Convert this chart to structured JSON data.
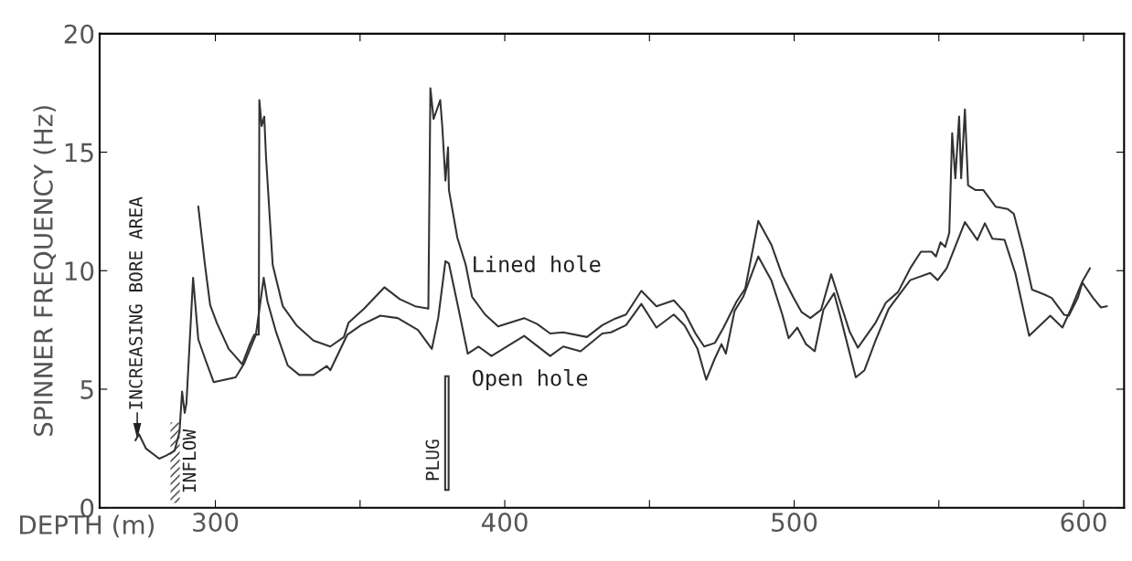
{
  "chart_data": {
    "type": "line",
    "xlabel": "DEPTH (m)",
    "ylabel": "SPINNER FREQUENCY (Hz)",
    "xlim": [
      260,
      614
    ],
    "ylim": [
      0,
      20
    ],
    "xticks": [
      300,
      {
        "value": 350,
        "label": null
      },
      400,
      {
        "value": 450,
        "label": null
      },
      500,
      {
        "value": 550,
        "label": null
      },
      600
    ],
    "yticks": [
      0,
      5,
      10,
      15,
      20
    ],
    "grid": false,
    "legend": false,
    "marker": "none",
    "line_style": "solid",
    "series": [
      {
        "name": "Lined hole",
        "color": "#333333",
        "x": [
          294.1,
          296.4,
          298.2,
          300.5,
          304.6,
          309.3,
          311.6,
          313.4,
          315,
          315.2,
          316,
          316.9,
          317.5,
          319.8,
          323.3,
          328,
          333.9,
          339.7,
          344.4,
          346,
          351.4,
          358.4,
          363.7,
          369,
          373.6,
          374.3,
          375.4,
          377.7,
          378.4,
          379.5,
          380.4,
          380.7,
          383.6,
          386.5,
          388.7,
          393.2,
          397.7,
          406.7,
          411.2,
          415.7,
          420.2,
          428.4,
          433.7,
          438.2,
          441.9,
          447.2,
          452.4,
          458.4,
          462.1,
          465.9,
          468.9,
          472.6,
          475.6,
          480.1,
          483.1,
          487.6,
          492.1,
          495.9,
          499.6,
          502.6,
          505.6,
          509.3,
          512.8,
          515.3,
          519.1,
          522,
          528.1,
          531.7,
          535.9,
          540.1,
          543.8,
          547.5,
          549,
          550.6,
          552.2,
          553.6,
          554.6,
          555.7,
          557,
          557.7,
          559,
          560.1,
          562.7,
          565.4,
          569.6,
          573.8,
          575.9,
          579.1,
          582.2,
          586.4,
          589,
          593.3,
          594.9,
          598,
          599.6,
          603.3,
          606,
          608
        ],
        "values": [
          12.7,
          10.25,
          8.55,
          7.8,
          6.7,
          6.05,
          6.8,
          7.3,
          7.3,
          17.2,
          16.1,
          16.5,
          14.8,
          10.25,
          8.5,
          7.7,
          7.05,
          6.8,
          7.2,
          7.8,
          8.4,
          9.3,
          8.8,
          8.5,
          8.4,
          17.7,
          16.4,
          17.2,
          16.1,
          13.8,
          15.2,
          13.4,
          11.4,
          10.25,
          8.9,
          8.15,
          7.65,
          8.0,
          7.75,
          7.35,
          7.4,
          7.2,
          7.7,
          7.98,
          8.15,
          9.15,
          8.5,
          8.75,
          8.25,
          7.35,
          6.8,
          6.95,
          7.6,
          8.7,
          9.25,
          12.1,
          11.1,
          9.8,
          8.9,
          8.25,
          8.0,
          8.35,
          9.85,
          8.9,
          7.45,
          6.75,
          7.8,
          8.65,
          9.1,
          10.1,
          10.8,
          10.8,
          10.6,
          11.2,
          11.0,
          11.6,
          15.8,
          13.9,
          16.5,
          13.9,
          16.8,
          13.6,
          13.4,
          13.4,
          12.7,
          12.6,
          12.4,
          10.9,
          9.2,
          9.0,
          8.85,
          8.14,
          8.1,
          8.85,
          9.5,
          8.85,
          8.45,
          8.5
        ]
      },
      {
        "name": "Open hole",
        "color": "#333333",
        "x": [
          272.4,
          273.6,
          276,
          280.6,
          283,
          285.9,
          287.6,
          288.5,
          289.4,
          290,
          292.3,
          294.1,
          296.4,
          299.4,
          307,
          310,
          314,
          316.7,
          318,
          321,
          325,
          329,
          333.9,
          338.5,
          339.7,
          345.6,
          350.3,
          357,
          363,
          370,
          374.8,
          377,
          379.5,
          380.7,
          384,
          387.2,
          390.9,
          395.4,
          406.7,
          415.7,
          420.2,
          426.2,
          433.7,
          436.7,
          441.9,
          447.2,
          452.4,
          458.4,
          462.1,
          466.6,
          469.6,
          472.6,
          474.9,
          476.4,
          479.4,
          482.4,
          487.6,
          492.1,
          495.9,
          498.1,
          501.1,
          504.1,
          507.1,
          510.1,
          513.8,
          516.1,
          521.3,
          524.3,
          528.1,
          532.7,
          540.1,
          547,
          549.6,
          552.7,
          559,
          563.3,
          565.9,
          568.5,
          572.7,
          576.4,
          581.2,
          588.5,
          592.7,
          595.9,
          599.6,
          602.2
        ],
        "values": [
          2.85,
          3.1,
          2.5,
          2.07,
          2.2,
          2.4,
          3.2,
          4.9,
          4.0,
          4.4,
          9.7,
          7.1,
          6.3,
          5.3,
          5.5,
          6.1,
          7.3,
          9.7,
          8.7,
          7.4,
          6.0,
          5.6,
          5.6,
          5.98,
          5.8,
          7.3,
          7.7,
          8.1,
          8.0,
          7.5,
          6.7,
          8.0,
          10.4,
          10.3,
          8.4,
          6.5,
          6.8,
          6.4,
          7.25,
          6.4,
          6.8,
          6.6,
          7.35,
          7.4,
          7.7,
          8.6,
          7.6,
          8.15,
          7.7,
          6.7,
          5.4,
          6.3,
          6.9,
          6.5,
          8.3,
          8.9,
          10.6,
          9.6,
          8.15,
          7.15,
          7.6,
          6.9,
          6.6,
          8.35,
          9.05,
          8.0,
          5.5,
          5.8,
          7.05,
          8.4,
          9.6,
          9.9,
          9.6,
          10.1,
          12.05,
          11.3,
          12.0,
          11.35,
          11.3,
          9.9,
          7.25,
          8.1,
          7.6,
          8.45,
          9.55,
          10.1
        ]
      }
    ],
    "annotations": [
      "INCREASING BORE AREA",
      "INFLOW",
      "PLUG"
    ]
  }
}
